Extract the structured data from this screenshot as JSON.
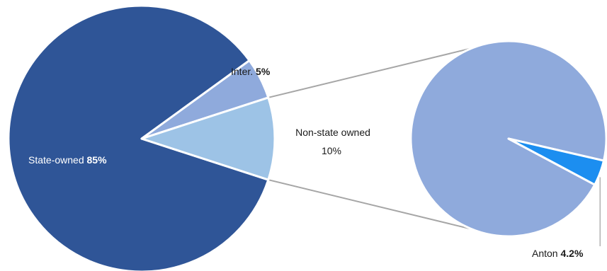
{
  "chart_data": [
    {
      "type": "pie",
      "title": "",
      "slices": [
        {
          "label": "State-owned",
          "value": 85,
          "value_label": "85%",
          "color": "#2f5597"
        },
        {
          "label": "Inter.",
          "value": 5,
          "value_label": "5%",
          "color": "#8faadc"
        },
        {
          "label": "Non-state owned",
          "value": 10,
          "value_label": "10%",
          "color": "#9dc3e6"
        }
      ],
      "exploded_slice": "Non-state owned"
    },
    {
      "type": "pie",
      "title": "",
      "breakdown_of": "Non-state owned",
      "slices": [
        {
          "label": "",
          "value": 95.8,
          "color": "#8faadc"
        },
        {
          "label": "Anton",
          "value": 4.2,
          "value_label": "4.2%",
          "color": "#1c8ef0"
        }
      ]
    }
  ]
}
